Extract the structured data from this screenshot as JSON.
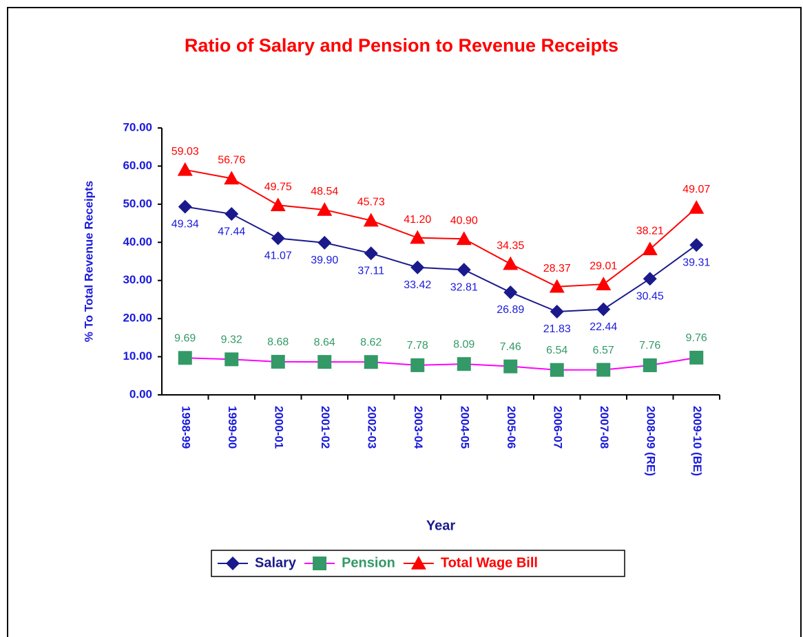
{
  "chart_data": {
    "type": "line",
    "title": "Ratio of Salary and Pension to Revenue Receipts",
    "x_label": "Year",
    "y_label": "% To Total Revenue Receipts",
    "categories": [
      "1998-99",
      "1999-00",
      "2000-01",
      "2001-02",
      "2002-03",
      "2003-04",
      "2004-05",
      "2005-06",
      "2006-07",
      "2007-08",
      "2008-09 (RE)",
      "2009-10 (BE)"
    ],
    "series": [
      {
        "name": "Salary",
        "color": "#1a1a8c",
        "marker": "diamond",
        "marker_color": "#1a1a8c",
        "label_color": "#1a1adc",
        "label_position": "below",
        "values": [
          49.34,
          47.44,
          41.07,
          39.9,
          37.11,
          33.42,
          32.81,
          26.89,
          21.83,
          22.44,
          30.45,
          39.31
        ],
        "value_labels": [
          "49.34",
          "47.44",
          "41.07",
          "39.90",
          "37.11",
          "33.42",
          "32.81",
          "26.89",
          "21.83",
          "22.44",
          "30.45",
          "39.31"
        ]
      },
      {
        "name": "Pension",
        "color": "#ff00ff",
        "marker": "square",
        "marker_color": "#339966",
        "label_color": "#339966",
        "label_position": "above",
        "values": [
          9.69,
          9.32,
          8.68,
          8.64,
          8.62,
          7.78,
          8.09,
          7.46,
          6.54,
          6.57,
          7.76,
          9.76
        ],
        "value_labels": [
          "9.69",
          "9.32",
          "8.68",
          "8.64",
          "8.62",
          "7.78",
          "8.09",
          "7.46",
          "6.54",
          "6.57",
          "7.76",
          "9.76"
        ]
      },
      {
        "name": "Total Wage Bill",
        "color": "#ff0000",
        "marker": "triangle",
        "marker_color": "#ff0000",
        "label_color": "#ff0000",
        "label_position": "above",
        "values": [
          59.03,
          56.76,
          49.75,
          48.54,
          45.73,
          41.2,
          40.9,
          34.35,
          28.37,
          29.01,
          38.21,
          49.07
        ],
        "value_labels": [
          "59.03",
          "56.76",
          "49.75",
          "48.54",
          "45.73",
          "41.20",
          "40.90",
          "34.35",
          "28.37",
          "29.01",
          "38.21",
          "49.07"
        ]
      }
    ],
    "ylim": [
      0,
      70
    ],
    "yticks": [
      {
        "value": 0,
        "label": "0.00"
      },
      {
        "value": 10,
        "label": "10.00"
      },
      {
        "value": 20,
        "label": "20.00"
      },
      {
        "value": 30,
        "label": "30.00"
      },
      {
        "value": 40,
        "label": "40.00"
      },
      {
        "value": 50,
        "label": "50.00"
      },
      {
        "value": 60,
        "label": "60.00"
      },
      {
        "value": 70,
        "label": "70.00"
      }
    ],
    "grid": false,
    "legend": "bottom"
  }
}
